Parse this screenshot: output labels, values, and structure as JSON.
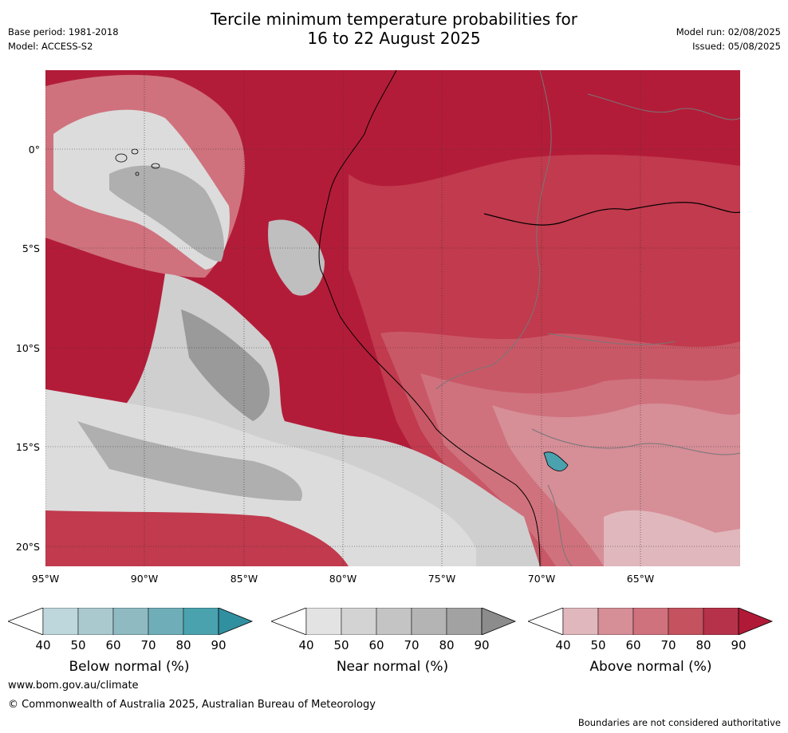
{
  "title": {
    "line1": "Tercile minimum temperature probabilities for",
    "line2": "16 to 22 August 2025"
  },
  "meta": {
    "base_period": "Base period: 1981-2018",
    "model": "Model: ACCESS-S2",
    "model_run": "Model run: 02/08/2025",
    "issued": "Issued: 05/08/2025"
  },
  "map": {
    "latitude_labels": [
      "0°",
      "5°S",
      "10°S",
      "15°S",
      "20°S"
    ],
    "longitude_labels": [
      "95°W",
      "90°W",
      "85°W",
      "80°W",
      "75°W",
      "70°W",
      "65°W"
    ],
    "colors": {
      "above_90": "#b31c39",
      "above_80": "#c13a4d",
      "above_70": "#c95866",
      "above_60": "#cf727d",
      "above_50": "#d68e97",
      "above_40": "#e0b7bc",
      "near_40": "#dcdcdc",
      "near_50": "#cfcfcf",
      "near_60": "#bfbfbf",
      "near_70": "#afafaf",
      "near_80": "#9a9a9a",
      "near_90": "#8a8a8a"
    }
  },
  "legends": [
    {
      "name": "Below normal (%)",
      "ticks": [
        "40",
        "50",
        "60",
        "70",
        "80",
        "90"
      ],
      "colors": [
        "#bed7dc",
        "#a9c9cf",
        "#8fbac2",
        "#6faeb8",
        "#4aa2ae",
        "#3190a0"
      ]
    },
    {
      "name": "Near normal (%)",
      "ticks": [
        "40",
        "50",
        "60",
        "70",
        "80",
        "90"
      ],
      "colors": [
        "#e3e3e3",
        "#d3d3d3",
        "#c4c4c4",
        "#b4b4b4",
        "#a2a2a2",
        "#8c8c8c"
      ]
    },
    {
      "name": "Above normal (%)",
      "ticks": [
        "40",
        "50",
        "60",
        "70",
        "80",
        "90"
      ],
      "colors": [
        "#e0b7bc",
        "#d68e97",
        "#cf727d",
        "#c4525f",
        "#b5324a",
        "#b01a37"
      ]
    }
  ],
  "footer": {
    "website": "www.bom.gov.au/climate",
    "copyright": "© Commonwealth of Australia 2025, Australian Bureau of Meteorology",
    "disclaimer": "Boundaries are not considered authoritative"
  }
}
